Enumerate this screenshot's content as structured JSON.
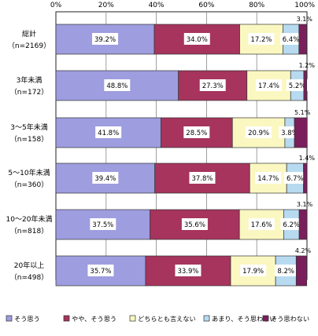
{
  "chart_data": {
    "type": "bar",
    "orientation": "horizontal",
    "stacked": true,
    "xlim": [
      0,
      100
    ],
    "x_ticks": [
      "0%",
      "20%",
      "40%",
      "60%",
      "80%",
      "100%"
    ],
    "grid": true,
    "legend_position": "bottom",
    "categories": [
      {
        "line1": "総計",
        "line2": "（n=2169）"
      },
      {
        "line1": "3年未満",
        "line2": "（n=172）"
      },
      {
        "line1": "3～5年未満",
        "line2": "（n=158）"
      },
      {
        "line1": "5～10年未満",
        "line2": "（n=360）"
      },
      {
        "line1": "10～20年未満",
        "line2": "（n=818）"
      },
      {
        "line1": "20年以上",
        "line2": "（n=498）"
      }
    ],
    "series": [
      {
        "name": "そう思う",
        "color": "#9d9ddf",
        "values": [
          39.2,
          48.8,
          41.8,
          39.4,
          37.5,
          35.7
        ],
        "labels": [
          "39.2%",
          "48.8%",
          "41.8%",
          "39.4%",
          "37.5%",
          "35.7%"
        ]
      },
      {
        "name": "やや、そう思う",
        "color": "#a6345d",
        "values": [
          34.0,
          27.3,
          28.5,
          37.8,
          35.6,
          33.9
        ],
        "labels": [
          "34.0%",
          "27.3%",
          "28.5%",
          "37.8%",
          "35.6%",
          "33.9%"
        ]
      },
      {
        "name": "どちらとも言えない",
        "color": "#fbf7c1",
        "values": [
          17.2,
          17.4,
          20.9,
          14.7,
          17.6,
          17.9
        ],
        "labels": [
          "17.2%",
          "17.4%",
          "20.9%",
          "14.7%",
          "17.6%",
          "17.9%"
        ]
      },
      {
        "name": "あまり、そう思わない",
        "color": "#b7daf1",
        "values": [
          6.4,
          5.2,
          3.8,
          6.7,
          6.2,
          8.2
        ],
        "labels": [
          "6.4%",
          "5.2%",
          "3.8%",
          "6.7%",
          "6.2%",
          "8.2%"
        ]
      },
      {
        "name": "そう思わない",
        "color": "#7a1f5c",
        "values": [
          3.1,
          1.2,
          5.1,
          1.4,
          3.1,
          4.2
        ],
        "labels": [
          "3.1%",
          "1.2%",
          "5.1%",
          "1.4%",
          "3.1%",
          "4.2%"
        ]
      }
    ]
  }
}
